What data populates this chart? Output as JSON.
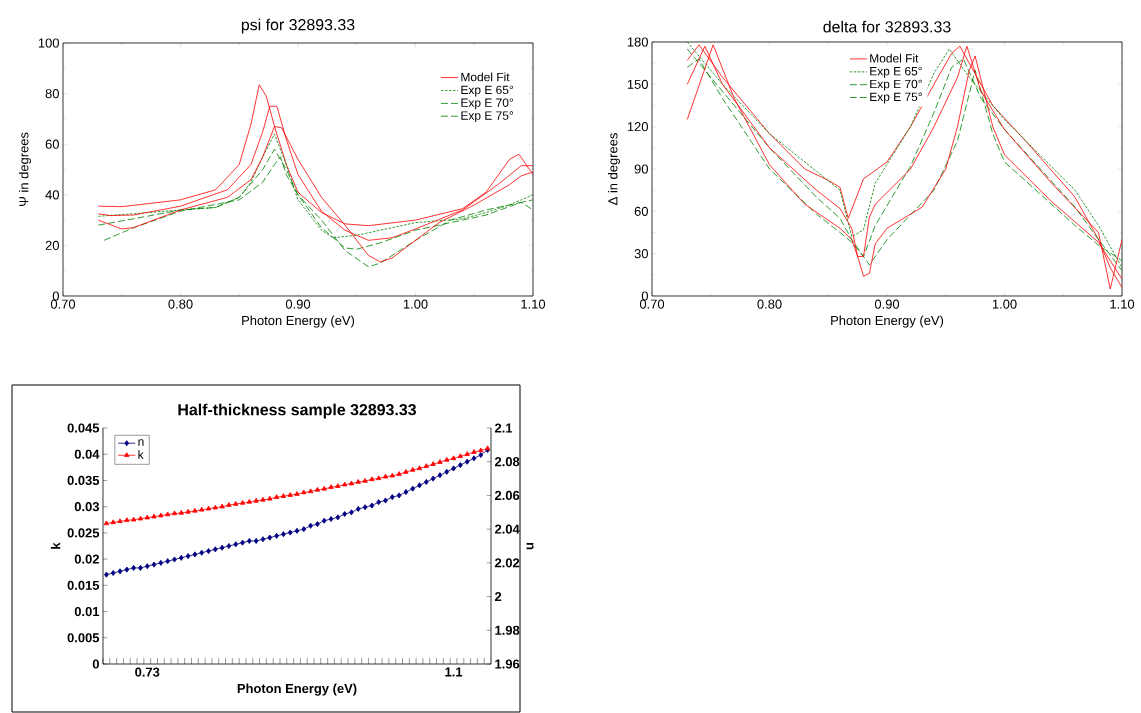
{
  "chart_data": [
    {
      "type": "line",
      "title": "psi for 32893.33",
      "xlabel": "Photon Energy (eV)",
      "ylabel": "Ψ in degrees",
      "xlim": [
        0.7,
        1.1
      ],
      "xticks": [
        {
          "value": 0.7,
          "label": "0.70"
        },
        {
          "value": 0.8,
          "label": "0.80"
        },
        {
          "value": 0.9,
          "label": "0.90"
        },
        {
          "value": 1.0,
          "label": "1.00"
        },
        {
          "value": 1.1,
          "label": "1.10"
        }
      ],
      "ylim": [
        0,
        100
      ],
      "yticks": [
        0,
        20,
        40,
        60,
        80,
        100
      ],
      "legend": "top right",
      "series": [
        {
          "name": "Model Fit",
          "color": "#ff0000",
          "line_style": "solid",
          "x": [
            0.73,
            0.75,
            0.8,
            0.83,
            0.85,
            0.86,
            0.867,
            0.873,
            0.88,
            0.89,
            0.9,
            0.92,
            0.94,
            0.96,
            1.0,
            1.04,
            1.06,
            1.08,
            1.088,
            1.1
          ],
          "values": [
            35.5,
            35.3,
            38,
            42,
            52,
            68,
            83.5,
            79,
            67,
            52,
            41,
            33,
            28.5,
            27.8,
            30,
            34.5,
            41,
            54,
            56,
            48
          ]
        },
        {
          "name": "Exp E 65°",
          "color": "#008000",
          "line_style": "dotted",
          "x": [
            0.73,
            0.76,
            0.8,
            0.83,
            0.85,
            0.86,
            0.87,
            0.88,
            0.89,
            0.9,
            0.92,
            0.93,
            0.95,
            1.0,
            1.04,
            1.06,
            1.08,
            1.09,
            1.1
          ],
          "values": [
            31.5,
            32.5,
            34,
            35,
            39,
            45,
            55,
            64,
            52,
            38,
            26,
            23,
            24,
            29,
            30.5,
            33,
            36,
            38,
            40
          ]
        },
        {
          "name": "Exp E 70°",
          "color": "#008000",
          "line_style": "dashed",
          "x": [
            0.73,
            0.76,
            0.8,
            0.83,
            0.85,
            0.87,
            0.88,
            0.89,
            0.9,
            0.92,
            0.94,
            0.95,
            0.97,
            1.0,
            1.03,
            1.06,
            1.09,
            1.1
          ],
          "values": [
            28,
            30.5,
            34,
            35,
            39,
            50,
            58,
            50,
            40,
            27,
            19,
            18.5,
            21,
            26,
            29,
            32,
            37,
            38
          ]
        },
        {
          "name": "Exp E 75°",
          "color": "#008000",
          "line_style": "dashed",
          "x": [
            0.735,
            0.76,
            0.8,
            0.85,
            0.87,
            0.88,
            0.885,
            0.89,
            0.9,
            0.92,
            0.94,
            0.96,
            0.97,
            1.0,
            1.03,
            1.06,
            1.09,
            1.1
          ],
          "values": [
            22,
            27,
            33.5,
            38,
            45,
            52,
            55,
            48,
            40,
            30,
            18,
            11.5,
            13,
            22,
            30,
            34,
            37,
            34
          ]
        },
        {
          "color": "#ff0000",
          "line_style": "solid",
          "x": [
            0.73,
            0.74,
            0.76,
            0.8,
            0.84,
            0.86,
            0.87,
            0.876,
            0.882,
            0.89,
            0.9,
            0.92,
            0.94,
            0.96,
            0.98,
            1.0,
            1.04,
            1.07,
            1.09,
            1.1
          ],
          "values": [
            32.5,
            31.8,
            32,
            35.5,
            42,
            52,
            65,
            75,
            75,
            62,
            48,
            33.5,
            26,
            22,
            23,
            26.5,
            34,
            44,
            51.5,
            51.5
          ]
        },
        {
          "color": "#ff0000",
          "line_style": "solid",
          "x": [
            0.73,
            0.75,
            0.76,
            0.8,
            0.84,
            0.86,
            0.87,
            0.88,
            0.886,
            0.9,
            0.92,
            0.94,
            0.96,
            0.97,
            0.98,
            1.0,
            1.02,
            1.05,
            1.08,
            1.09,
            1.1
          ],
          "values": [
            30,
            26.5,
            27,
            34,
            39,
            46,
            55,
            67,
            66.5,
            54,
            39,
            28,
            16,
            13.5,
            15,
            22,
            29,
            36,
            44,
            47.5,
            49
          ]
        }
      ]
    },
    {
      "type": "line",
      "title": "delta for 32893.33",
      "xlabel": "Photon Energy (eV)",
      "ylabel": "Δ in degrees",
      "xlim": [
        0.7,
        1.1
      ],
      "xticks": [
        {
          "value": 0.7,
          "label": "0.70"
        },
        {
          "value": 0.8,
          "label": "0.80"
        },
        {
          "value": 0.9,
          "label": "0.90"
        },
        {
          "value": 1.0,
          "label": "1.00"
        },
        {
          "value": 1.1,
          "label": "1.10"
        }
      ],
      "ylim": [
        0,
        180
      ],
      "yticks": [
        0,
        30,
        60,
        90,
        120,
        150,
        180
      ],
      "legend": "top",
      "series": [
        {
          "name": "Model Fit",
          "color": "#ff0000",
          "line_style": "solid",
          "x": [
            0.73,
            0.74,
            0.76,
            0.8,
            0.83,
            0.85,
            0.86,
            0.867,
            0.88,
            0.9,
            0.92,
            0.94,
            0.955,
            0.962,
            0.97,
            0.99,
            1.02,
            1.06,
            1.08,
            1.09,
            1.1
          ],
          "values": [
            167,
            178,
            155,
            115,
            90,
            82,
            77,
            55,
            83,
            95,
            120,
            150,
            172,
            177,
            165,
            135,
            108,
            70,
            40,
            20,
            6
          ]
        },
        {
          "name": "Exp E 65°",
          "color": "#008000",
          "line_style": "dotted",
          "x": [
            0.73,
            0.74,
            0.76,
            0.8,
            0.83,
            0.86,
            0.87,
            0.88,
            0.89,
            0.92,
            0.94,
            0.953,
            0.97,
            1.0,
            1.06,
            1.08,
            1.1
          ],
          "values": [
            180,
            170,
            150,
            115,
            95,
            75,
            42,
            47,
            80,
            120,
            158,
            175,
            155,
            125,
            75,
            50,
            20
          ]
        },
        {
          "name": "Exp E 70°",
          "color": "#008000",
          "line_style": "dashed",
          "x": [
            0.73,
            0.74,
            0.76,
            0.8,
            0.84,
            0.86,
            0.87,
            0.88,
            0.89,
            0.92,
            0.94,
            0.955,
            0.965,
            0.98,
            1.0,
            1.06,
            1.08,
            1.1
          ],
          "values": [
            175,
            165,
            145,
            105,
            70,
            55,
            40,
            28,
            50,
            92,
            130,
            162,
            168,
            140,
            118,
            63,
            40,
            18
          ]
        },
        {
          "name": "Exp E 75°",
          "color": "#008000",
          "line_style": "dashed",
          "x": [
            0.73,
            0.74,
            0.76,
            0.8,
            0.84,
            0.86,
            0.87,
            0.88,
            0.885,
            0.9,
            0.94,
            0.96,
            0.975,
            0.99,
            1.0,
            1.04,
            1.06,
            1.08,
            1.1
          ],
          "values": [
            162,
            168,
            140,
            90,
            58,
            45,
            38,
            28,
            22,
            40,
            75,
            110,
            160,
            115,
            95,
            65,
            50,
            36,
            25
          ]
        },
        {
          "color": "#ff0000",
          "line_style": "solid",
          "x": [
            0.73,
            0.745,
            0.76,
            0.8,
            0.84,
            0.86,
            0.87,
            0.875,
            0.88,
            0.885,
            0.89,
            0.92,
            0.94,
            0.96,
            0.968,
            0.98,
            1.0,
            1.04,
            1.08,
            1.09,
            1.1
          ],
          "values": [
            150,
            177,
            150,
            105,
            75,
            62,
            48,
            28,
            28,
            56,
            65,
            90,
            120,
            155,
            177,
            145,
            118,
            80,
            45,
            5,
            40
          ]
        },
        {
          "color": "#ff0000",
          "line_style": "solid",
          "x": [
            0.73,
            0.752,
            0.77,
            0.8,
            0.83,
            0.86,
            0.87,
            0.875,
            0.88,
            0.885,
            0.89,
            0.9,
            0.93,
            0.95,
            0.96,
            0.97,
            0.975,
            0.99,
            1.0,
            1.04,
            1.08,
            1.1
          ],
          "values": [
            125,
            178,
            140,
            93,
            65,
            48,
            40,
            28,
            14,
            16,
            37,
            48,
            63,
            90,
            120,
            160,
            170,
            120,
            100,
            67,
            38,
            12
          ]
        }
      ]
    },
    {
      "type": "line",
      "title": "Half-thickness sample 32893.33",
      "xlabel": "Photon Energy (eV)",
      "ylabel": "k",
      "y2label": "n",
      "categories": [
        null,
        null,
        null,
        null,
        null,
        null,
        "0.73",
        null,
        null,
        null,
        null,
        null,
        null,
        null,
        null,
        null,
        null,
        null,
        null,
        null,
        null,
        null,
        null,
        null,
        null,
        null,
        null,
        null,
        null,
        null,
        null,
        null,
        null,
        null,
        null,
        null,
        null,
        null,
        null,
        null,
        null,
        null,
        null,
        null,
        null,
        null,
        null,
        null,
        null,
        null,
        null,
        "1.1",
        null,
        null,
        null,
        null,
        null
      ],
      "ylim": [
        0,
        0.045
      ],
      "yticks": [
        0,
        0.005,
        0.01,
        0.015,
        0.02,
        0.025,
        0.03,
        0.035,
        0.04,
        0.045
      ],
      "y2lim": [
        1.96,
        2.1
      ],
      "y2ticks": [
        1.96,
        1.98,
        2,
        2.02,
        2.04,
        2.06,
        2.08,
        2.1
      ],
      "legend": "top left",
      "series": [
        {
          "name": "n",
          "color": "#000080",
          "marker": "diamond",
          "axis": "y2",
          "values": [
            2.013,
            2.014,
            2.015,
            2.016,
            2.017,
            2.017,
            2.018,
            2.019,
            2.02,
            2.021,
            2.022,
            2.023,
            2.024,
            2.025,
            2.026,
            2.027,
            2.028,
            2.029,
            2.03,
            2.031,
            2.032,
            2.033,
            2.033,
            2.034,
            2.035,
            2.036,
            2.037,
            2.038,
            2.039,
            2.04,
            2.042,
            2.043,
            2.045,
            2.046,
            2.047,
            2.049,
            2.05,
            2.052,
            2.053,
            2.054,
            2.056,
            2.057,
            2.059,
            2.06,
            2.062,
            2.064,
            2.066,
            2.068,
            2.07,
            2.072,
            2.074,
            2.076,
            2.078,
            2.08,
            2.082,
            2.084,
            2.087
          ]
        },
        {
          "name": "k",
          "color": "#ff0000",
          "marker": "triangle",
          "values": [
            0.0268,
            0.027,
            0.0272,
            0.0274,
            0.0275,
            0.0277,
            0.0279,
            0.0281,
            0.0283,
            0.0285,
            0.0287,
            0.0288,
            0.029,
            0.0292,
            0.0294,
            0.0296,
            0.0298,
            0.03,
            0.0303,
            0.0305,
            0.0307,
            0.0309,
            0.0311,
            0.0313,
            0.0315,
            0.0318,
            0.032,
            0.0322,
            0.0324,
            0.0327,
            0.0329,
            0.0332,
            0.0334,
            0.0337,
            0.0339,
            0.0342,
            0.0344,
            0.0347,
            0.0349,
            0.0352,
            0.0354,
            0.0357,
            0.0359,
            0.0362,
            0.0366,
            0.037,
            0.0373,
            0.0377,
            0.0381,
            0.0385,
            0.0389,
            0.0392,
            0.0396,
            0.04,
            0.0404,
            0.0407,
            0.0411
          ]
        }
      ]
    }
  ]
}
